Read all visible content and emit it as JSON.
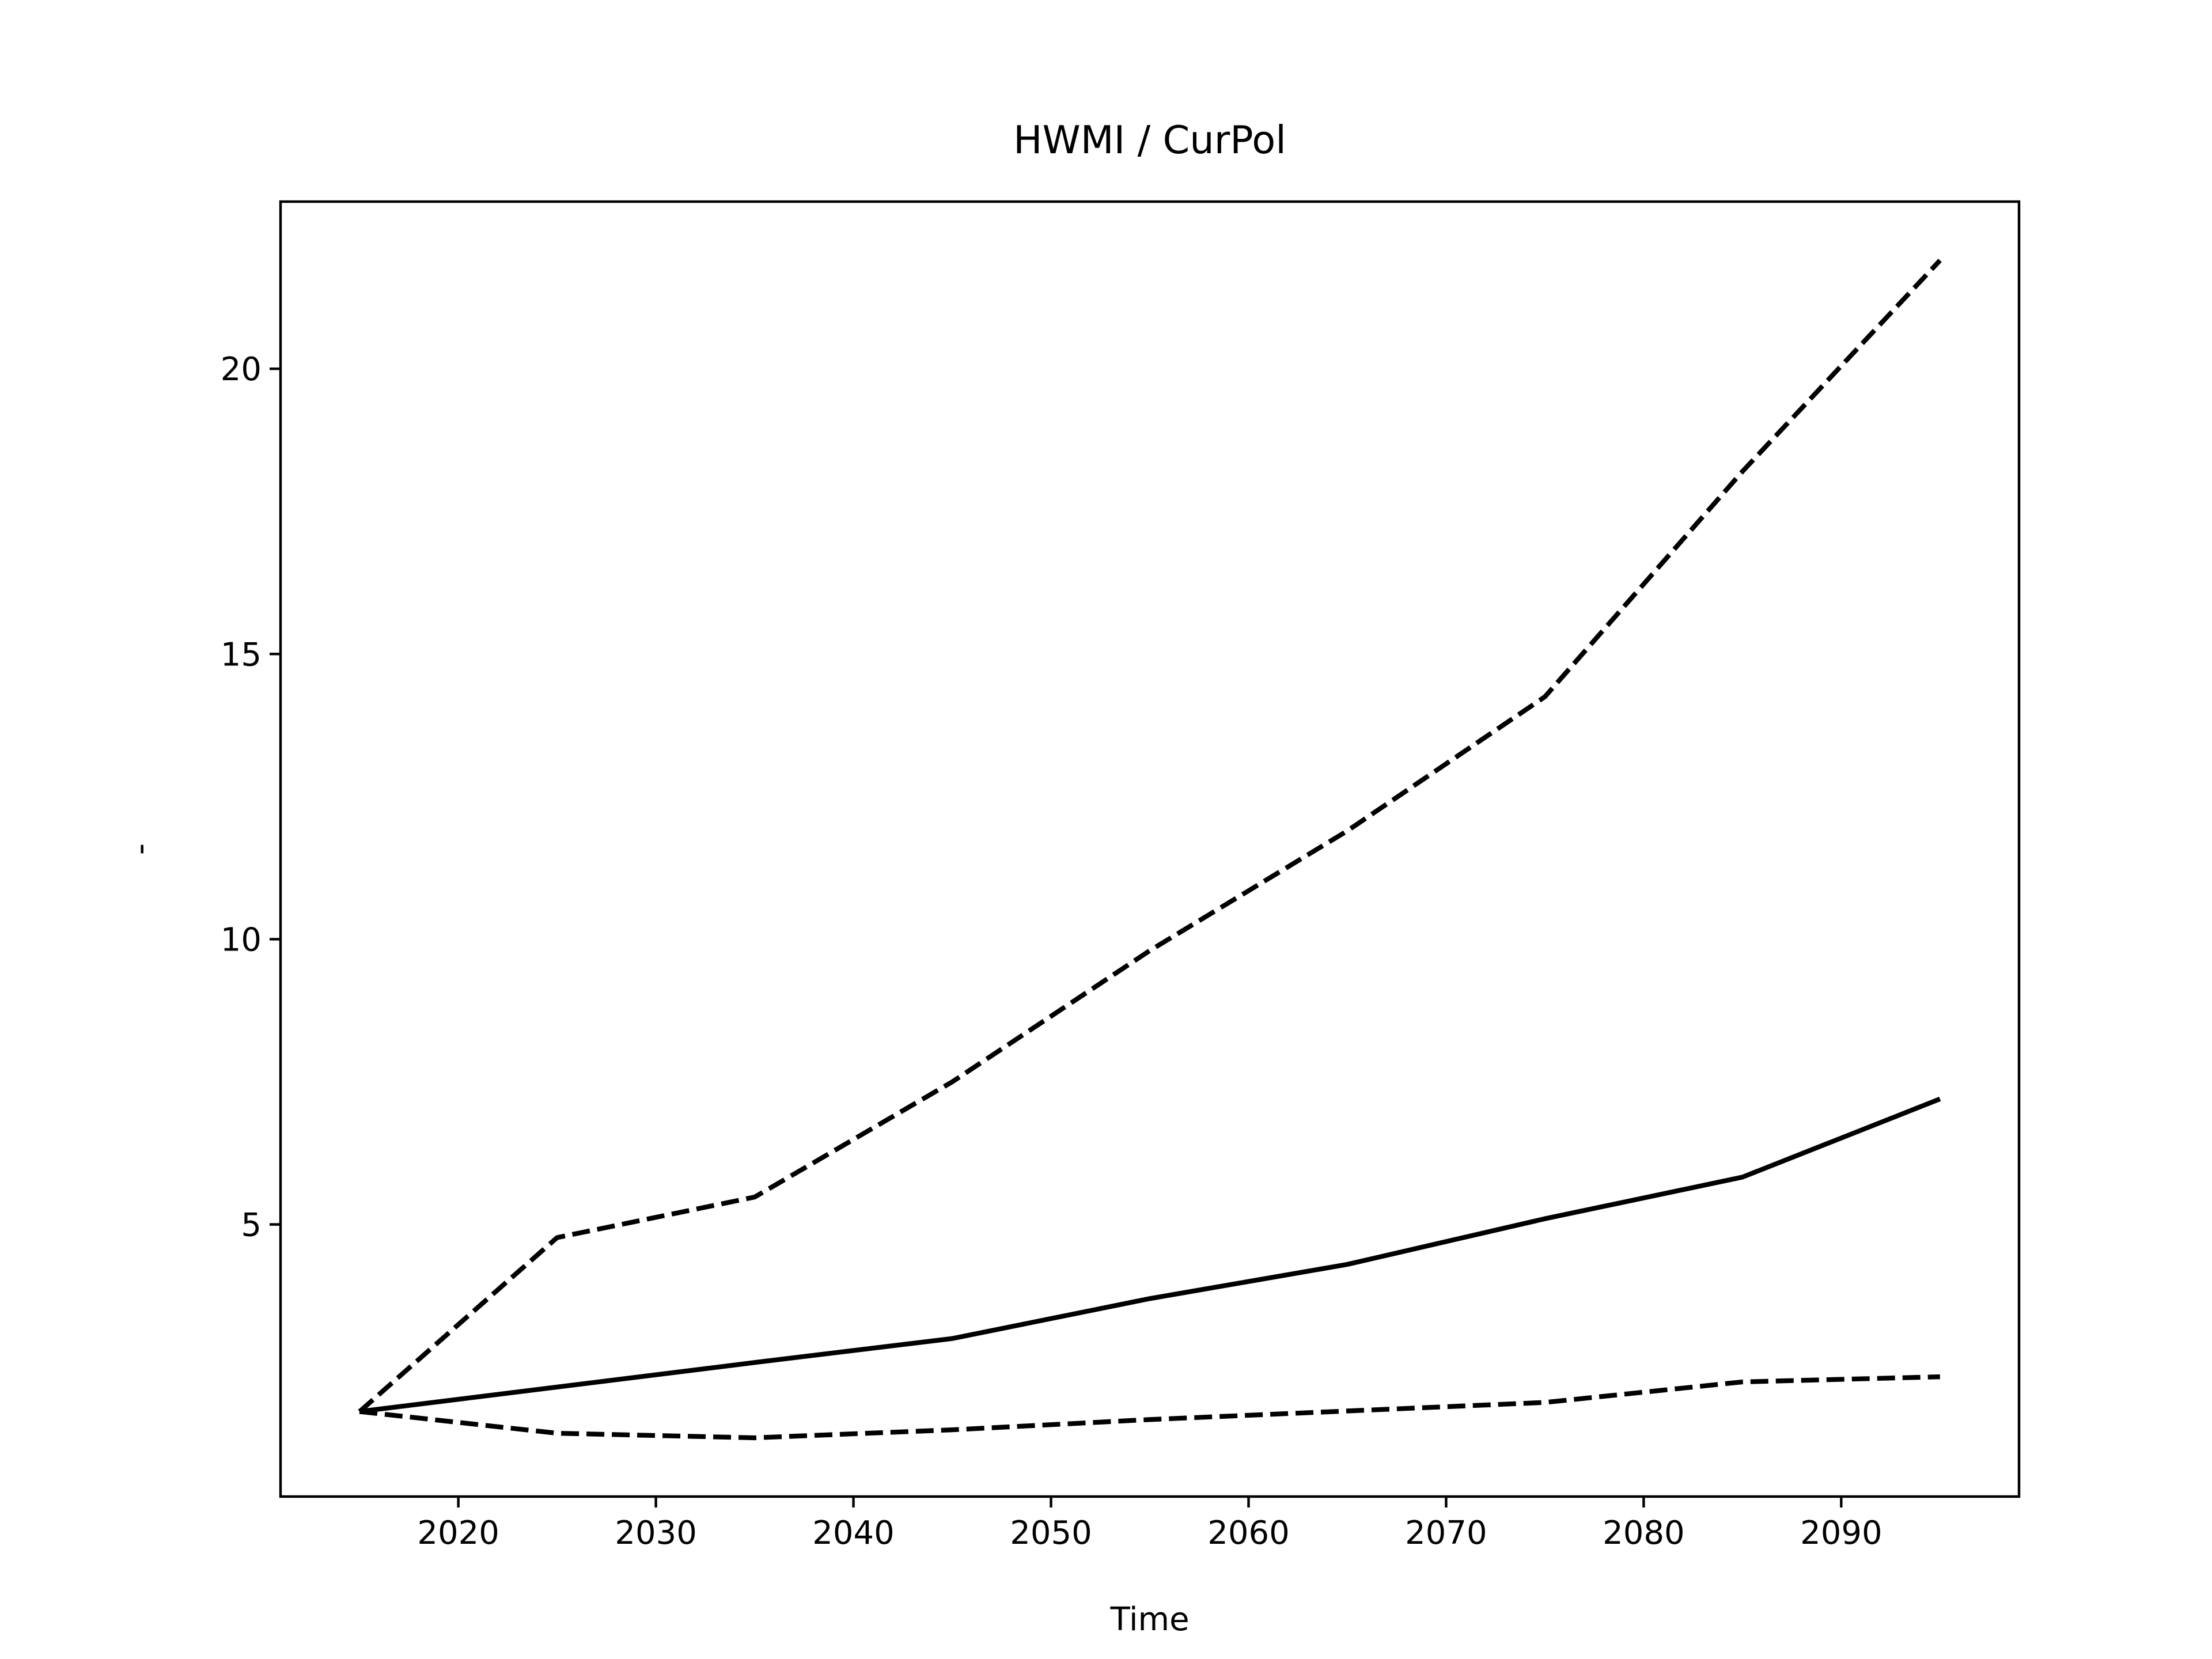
{
  "chart_data": {
    "type": "line",
    "title": "HWMI / CurPol",
    "xlabel": "Time",
    "ylabel": "-",
    "x": [
      2015,
      2025,
      2035,
      2045,
      2055,
      2065,
      2075,
      2085,
      2095
    ],
    "series": [
      {
        "color": "#000000",
        "linestyle": "solid",
        "values": [
          1.72,
          2.15,
          2.58,
          3.0,
          3.7,
          4.3,
          5.1,
          5.83,
          7.2
        ]
      },
      {
        "color": "#000000",
        "linestyle": "dashed",
        "values": [
          1.72,
          4.77,
          5.48,
          7.5,
          9.8,
          11.9,
          14.25,
          18.2,
          21.9
        ]
      },
      {
        "color": "#000000",
        "linestyle": "dashed",
        "values": [
          1.72,
          1.34,
          1.26,
          1.4,
          1.58,
          1.73,
          1.88,
          2.24,
          2.33
        ]
      }
    ],
    "xlim": [
      2011,
      2099
    ],
    "xticks": [
      2020,
      2030,
      2040,
      2050,
      2060,
      2070,
      2080,
      2090
    ],
    "ylim": [
      0.23,
      22.93
    ],
    "yticks": [
      5,
      10,
      15,
      20
    ],
    "grid": false
  }
}
